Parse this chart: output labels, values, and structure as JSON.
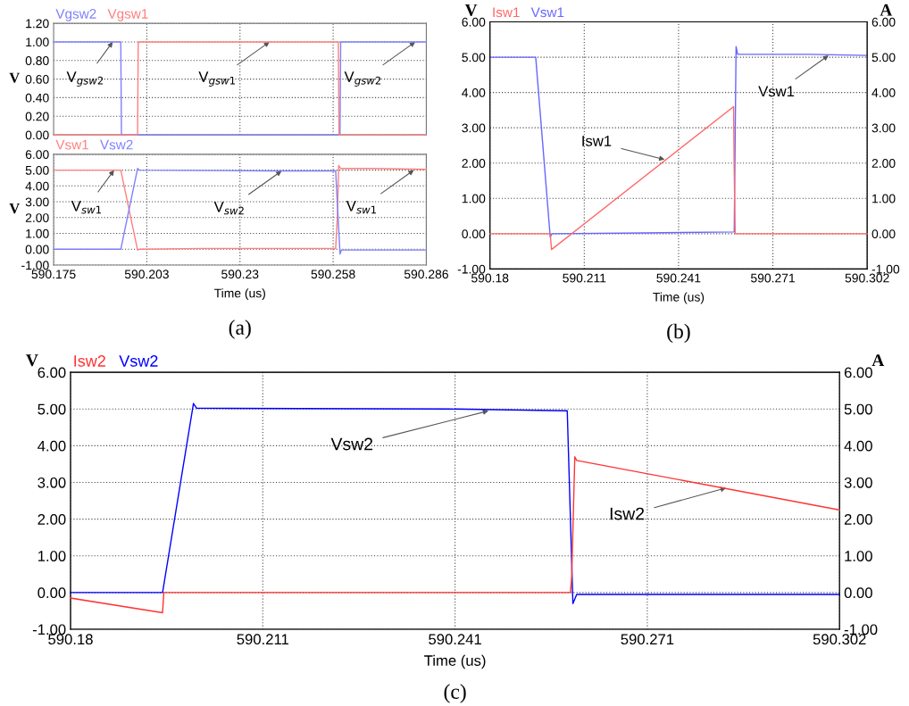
{
  "chart_data": [
    {
      "type": "line",
      "ylabel": "V",
      "xlim": [
        590.175,
        590.286
      ],
      "xticks": [
        {
          "value": 590.20275,
          "label": null
        },
        {
          "value": 590.2305,
          "label": null
        },
        {
          "value": 590.25825,
          "label": null
        }
      ],
      "ylim": [
        0,
        1.2
      ],
      "yticks": [
        {
          "value": 0,
          "label": "0.00"
        },
        {
          "value": 0.2,
          "label": "0.20"
        },
        {
          "value": 0.4,
          "label": "0.40"
        },
        {
          "value": 0.6,
          "label": "0.60"
        },
        {
          "value": 0.8,
          "label": "0.80"
        },
        {
          "value": 1.0,
          "label": "1.00"
        },
        {
          "value": 1.2,
          "label": "1.20"
        }
      ],
      "tick_labels": "y",
      "grid": true,
      "legend": "top left",
      "series": [
        {
          "name": "Vgsw2",
          "color": "#7f7fff",
          "x": [
            590.175,
            590.195,
            590.1952,
            590.2603,
            590.2605,
            590.286
          ],
          "values": [
            1,
            1,
            0,
            0,
            1,
            1
          ]
        },
        {
          "name": "Vgsw1",
          "color": "#ff7f7f",
          "x": [
            590.175,
            590.2,
            590.2002,
            590.2598,
            590.26,
            590.286
          ],
          "values": [
            0,
            0,
            1,
            1,
            0,
            0
          ]
        }
      ],
      "annotations": [
        {
          "text": "V$_{gsw2}$",
          "x": 590.1926,
          "y": 1.0
        },
        {
          "text": "V$_{gsw1}$",
          "x": 590.2393,
          "y": 1.0
        },
        {
          "text": "V$_{gsw2}$",
          "x": 590.2827,
          "y": 1.0
        }
      ]
    },
    {
      "type": "line",
      "ylabel": "V",
      "xlabel": "Time (us)",
      "xlim": [
        590.175,
        590.286
      ],
      "xticks": [
        590.175,
        {
          "value": 590.20275,
          "label": "590.203"
        },
        {
          "value": 590.2305,
          "label": "590.23"
        },
        {
          "value": 590.25825,
          "label": "590.258"
        },
        590.286
      ],
      "ylim": [
        -1,
        6
      ],
      "yticks": [
        {
          "value": -1,
          "label": "-1.00"
        },
        {
          "value": 0,
          "label": "0.00"
        },
        {
          "value": 1,
          "label": "1.00"
        },
        {
          "value": 2,
          "label": "2.00"
        },
        {
          "value": 3,
          "label": "3.00"
        },
        {
          "value": 4,
          "label": "4.00"
        },
        {
          "value": 5,
          "label": "5.00"
        },
        {
          "value": 6,
          "label": "6.00"
        }
      ],
      "grid": true,
      "legend": "top left",
      "series": [
        {
          "name": "Vsw1",
          "color": "#ff7f7f",
          "x": [
            590.175,
            590.195,
            590.2,
            590.2005,
            590.22,
            590.259,
            590.2595,
            590.2599,
            590.2605,
            590.27,
            590.286
          ],
          "values": [
            5,
            5,
            -0.05,
            0,
            0.05,
            0.05,
            2,
            5.3,
            5.1,
            5.1,
            5.05
          ]
        },
        {
          "name": "Vsw2",
          "color": "#7f7fff",
          "x": [
            590.175,
            590.195,
            590.2,
            590.2005,
            590.24,
            590.259,
            590.2603,
            590.2607,
            590.286
          ],
          "values": [
            0,
            0,
            5.1,
            5,
            4.95,
            4.95,
            -0.3,
            -0.05,
            -0.05
          ]
        }
      ],
      "annotations": [
        {
          "text": "V$_{sw1}$",
          "x": 590.193,
          "y": 5.0
        },
        {
          "text": "V$_{sw2}$",
          "x": 590.2429,
          "y": 4.95
        },
        {
          "text": "V$_{sw1}$",
          "x": 590.2823,
          "y": 5.0
        },
        "(a)"
      ]
    },
    {
      "type": "line",
      "ylabel": "V",
      "y2label": "A",
      "xlabel": "Time (us)",
      "xlim": [
        590.18,
        590.302
      ],
      "xticks": [
        590.18,
        {
          "value": 590.2105,
          "label": "590.211"
        },
        590.241,
        {
          "value": 590.2715,
          "label": "590.271"
        },
        590.302
      ],
      "ylim": [
        -1,
        6
      ],
      "yticks": [
        {
          "value": -1,
          "label": "-1.00"
        },
        {
          "value": 0,
          "label": "0.00"
        },
        {
          "value": 1,
          "label": "1.00"
        },
        {
          "value": 2,
          "label": "2.00"
        },
        {
          "value": 3,
          "label": "3.00"
        },
        {
          "value": 4,
          "label": "4.00"
        },
        {
          "value": 5,
          "label": "5.00"
        },
        {
          "value": 6,
          "label": "6.00"
        }
      ],
      "y2lim": [
        -1,
        6
      ],
      "y2ticks": [
        {
          "value": -1,
          "label": "-1.00"
        },
        {
          "value": 0,
          "label": "0.00"
        },
        {
          "value": 1,
          "label": "1.00"
        },
        {
          "value": 2,
          "label": "2.00"
        },
        {
          "value": 3,
          "label": "3.00"
        },
        {
          "value": 4,
          "label": "4.00"
        },
        {
          "value": 5,
          "label": "5.00"
        },
        {
          "value": 6,
          "label": "6.00"
        }
      ],
      "grid": true,
      "legend": "top left",
      "series": [
        {
          "name": "Isw1",
          "color": "#ff6666",
          "axis": "y2",
          "x": [
            590.18,
            590.1995,
            590.1999,
            590.2588,
            590.259,
            590.2593,
            590.302
          ],
          "values": [
            0,
            0,
            -0.45,
            3.6,
            1.8,
            0,
            0
          ]
        },
        {
          "name": "Vsw1",
          "color": "#6666ff",
          "x": [
            590.18,
            590.1948,
            590.1995,
            590.2,
            590.23,
            590.259,
            590.2596,
            590.2601,
            590.2832,
            590.302
          ],
          "values": [
            5,
            5,
            -0.1,
            0,
            0.02,
            0.05,
            5.3,
            5.08,
            5.08,
            5.05
          ]
        }
      ],
      "annotations": [
        {
          "text": "Isw1",
          "x": 590.2365,
          "y": 2.1
        },
        {
          "text": "Vsw1",
          "x": 590.2895,
          "y": 5.05
        },
        "(b)"
      ]
    },
    {
      "type": "line",
      "ylabel": "V",
      "y2label": "A",
      "xlabel": "Time (us)",
      "xlim": [
        590.18,
        590.302
      ],
      "xticks": [
        590.18,
        {
          "value": 590.2105,
          "label": "590.211"
        },
        590.241,
        {
          "value": 590.2715,
          "label": "590.271"
        },
        590.302
      ],
      "ylim": [
        -1,
        6
      ],
      "yticks": [
        {
          "value": -1,
          "label": "-1.00"
        },
        {
          "value": 0,
          "label": "0.00"
        },
        {
          "value": 1,
          "label": "1.00"
        },
        {
          "value": 2,
          "label": "2.00"
        },
        {
          "value": 3,
          "label": "3.00"
        },
        {
          "value": 4,
          "label": "4.00"
        },
        {
          "value": 5,
          "label": "5.00"
        },
        {
          "value": 6,
          "label": "6.00"
        }
      ],
      "y2lim": [
        -1,
        6
      ],
      "y2ticks": [
        {
          "value": -1,
          "label": "-1.00"
        },
        {
          "value": 0,
          "label": "0.00"
        },
        {
          "value": 1,
          "label": "1.00"
        },
        {
          "value": 2,
          "label": "2.00"
        },
        {
          "value": 3,
          "label": "3.00"
        },
        {
          "value": 4,
          "label": "4.00"
        },
        {
          "value": 5,
          "label": "5.00"
        },
        {
          "value": 6,
          "label": "6.00"
        }
      ],
      "grid": true,
      "legend": "top left",
      "series": [
        {
          "name": "Isw2",
          "color": "#ff3333",
          "axis": "y2",
          "x": [
            590.18,
            590.1946,
            590.1948,
            590.2593,
            590.2595,
            590.26,
            590.2603,
            590.302
          ],
          "values": [
            -0.15,
            -0.55,
            0,
            0,
            0.4,
            3.7,
            3.6,
            2.25
          ]
        },
        {
          "name": "Vsw2",
          "color": "#0000ff",
          "x": [
            590.18,
            590.1946,
            590.1995,
            590.2,
            590.24,
            590.2588,
            590.2597,
            590.2603,
            590.302
          ],
          "values": [
            0,
            0,
            5.15,
            5.02,
            5.0,
            4.95,
            -0.3,
            -0.05,
            -0.05
          ]
        }
      ],
      "annotations": [
        {
          "text": "Vsw2",
          "x": 590.2463,
          "y": 4.95
        },
        {
          "text": "Isw2",
          "x": 590.284,
          "y": 2.85
        },
        "(c)"
      ]
    }
  ]
}
